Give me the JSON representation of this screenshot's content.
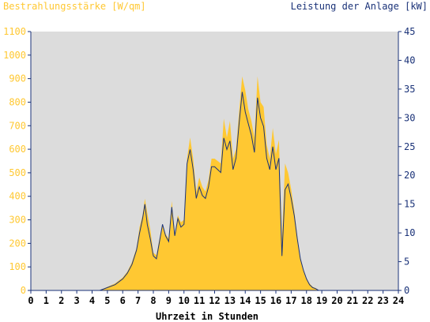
{
  "chart_data": {
    "type": "area",
    "left_axis_title": "Bestrahlungsstärke [W/qm]",
    "right_axis_title": "Leistung der Anlage [kW]",
    "xlabel": "Uhrzeit in Stunden",
    "xlim": [
      0,
      24
    ],
    "ylim_left": [
      0,
      1100
    ],
    "ylim_right": [
      0,
      45
    ],
    "x_ticks": [
      "0",
      "1",
      "2",
      "3",
      "4",
      "5",
      "6",
      "7",
      "8",
      "9",
      "10",
      "11",
      "12",
      "13",
      "14",
      "15",
      "16",
      "17",
      "18",
      "19",
      "20",
      "21",
      "22",
      "23",
      "24"
    ],
    "y_ticks_left": [
      "0",
      "100",
      "200",
      "300",
      "400",
      "500",
      "600",
      "700",
      "800",
      "900",
      "1000",
      "1100"
    ],
    "y_ticks_right": [
      "0",
      "5",
      "10",
      "15",
      "20",
      "25",
      "30",
      "35",
      "40",
      "45"
    ],
    "grid": false,
    "colors": {
      "irradiance": "#ffc832",
      "power": "#1a3278",
      "plot_bg": "#dcdcdc",
      "axis": "#1a3278"
    },
    "series": [
      {
        "type": "area",
        "axis": "left",
        "x": [
          0,
          4.5,
          5.0,
          5.5,
          6.0,
          6.3,
          6.6,
          6.9,
          7.1,
          7.3,
          7.45,
          7.6,
          7.8,
          8.0,
          8.2,
          8.4,
          8.6,
          8.8,
          9.0,
          9.2,
          9.4,
          9.6,
          9.8,
          10.0,
          10.2,
          10.4,
          10.6,
          10.8,
          11.0,
          11.2,
          11.4,
          11.6,
          11.8,
          12.0,
          12.2,
          12.4,
          12.6,
          12.8,
          13.0,
          13.2,
          13.4,
          13.6,
          13.8,
          14.0,
          14.2,
          14.4,
          14.6,
          14.8,
          15.0,
          15.2,
          15.4,
          15.6,
          15.8,
          16.0,
          16.2,
          16.4,
          16.6,
          16.8,
          17.0,
          17.2,
          17.4,
          17.6,
          17.8,
          18.0,
          18.2,
          18.4,
          18.6,
          18.8,
          19.0,
          19.5,
          20.0,
          20.5,
          21.0,
          24
        ],
        "values": [
          0,
          0,
          15,
          30,
          55,
          80,
          120,
          180,
          270,
          320,
          390,
          330,
          260,
          160,
          150,
          220,
          280,
          240,
          220,
          380,
          240,
          320,
          290,
          300,
          560,
          650,
          560,
          420,
          480,
          440,
          420,
          470,
          560,
          560,
          550,
          540,
          730,
          650,
          720,
          560,
          600,
          760,
          910,
          850,
          770,
          720,
          650,
          910,
          800,
          780,
          620,
          560,
          690,
          580,
          640,
          220,
          540,
          500,
          430,
          340,
          230,
          130,
          90,
          50,
          30,
          15,
          10,
          0,
          0,
          0,
          0,
          0,
          0,
          0
        ]
      },
      {
        "type": "line",
        "axis": "right",
        "x": [
          0,
          4.5,
          5.0,
          5.5,
          6.0,
          6.3,
          6.6,
          6.9,
          7.1,
          7.3,
          7.45,
          7.6,
          7.8,
          8.0,
          8.2,
          8.4,
          8.6,
          8.8,
          9.0,
          9.2,
          9.4,
          9.6,
          9.8,
          10.0,
          10.2,
          10.4,
          10.6,
          10.8,
          11.0,
          11.2,
          11.4,
          11.6,
          11.8,
          12.0,
          12.2,
          12.4,
          12.6,
          12.8,
          13.0,
          13.2,
          13.4,
          13.6,
          13.8,
          14.0,
          14.2,
          14.4,
          14.6,
          14.8,
          15.0,
          15.2,
          15.4,
          15.6,
          15.8,
          16.0,
          16.2,
          16.4,
          16.6,
          16.8,
          17.0,
          17.2,
          17.4,
          17.6,
          17.8,
          18.0,
          18.2,
          18.4,
          18.6,
          18.8,
          19.0,
          19.5,
          20.0,
          20.5,
          21.0,
          24
        ],
        "values": [
          0,
          0,
          0.5,
          1.0,
          2.0,
          3.0,
          4.5,
          7.0,
          10.0,
          12.5,
          15.0,
          11.5,
          9.0,
          6.0,
          5.5,
          8.5,
          11.5,
          9.5,
          8.5,
          14.5,
          9.5,
          12.5,
          11.0,
          11.5,
          22.0,
          24.5,
          21.0,
          16.0,
          18.0,
          16.5,
          16.0,
          18.0,
          21.5,
          21.5,
          21.0,
          20.5,
          26.5,
          24.5,
          26.0,
          21.0,
          23.0,
          29.0,
          34.5,
          31.0,
          29.0,
          27.0,
          24.0,
          33.5,
          30.0,
          28.5,
          23.0,
          21.0,
          25.0,
          21.0,
          23.0,
          6.0,
          17.5,
          18.5,
          16.0,
          13.0,
          9.0,
          5.5,
          3.5,
          2.0,
          1.0,
          0.5,
          0.3,
          0,
          0,
          0,
          0,
          0,
          0,
          0
        ]
      }
    ]
  }
}
